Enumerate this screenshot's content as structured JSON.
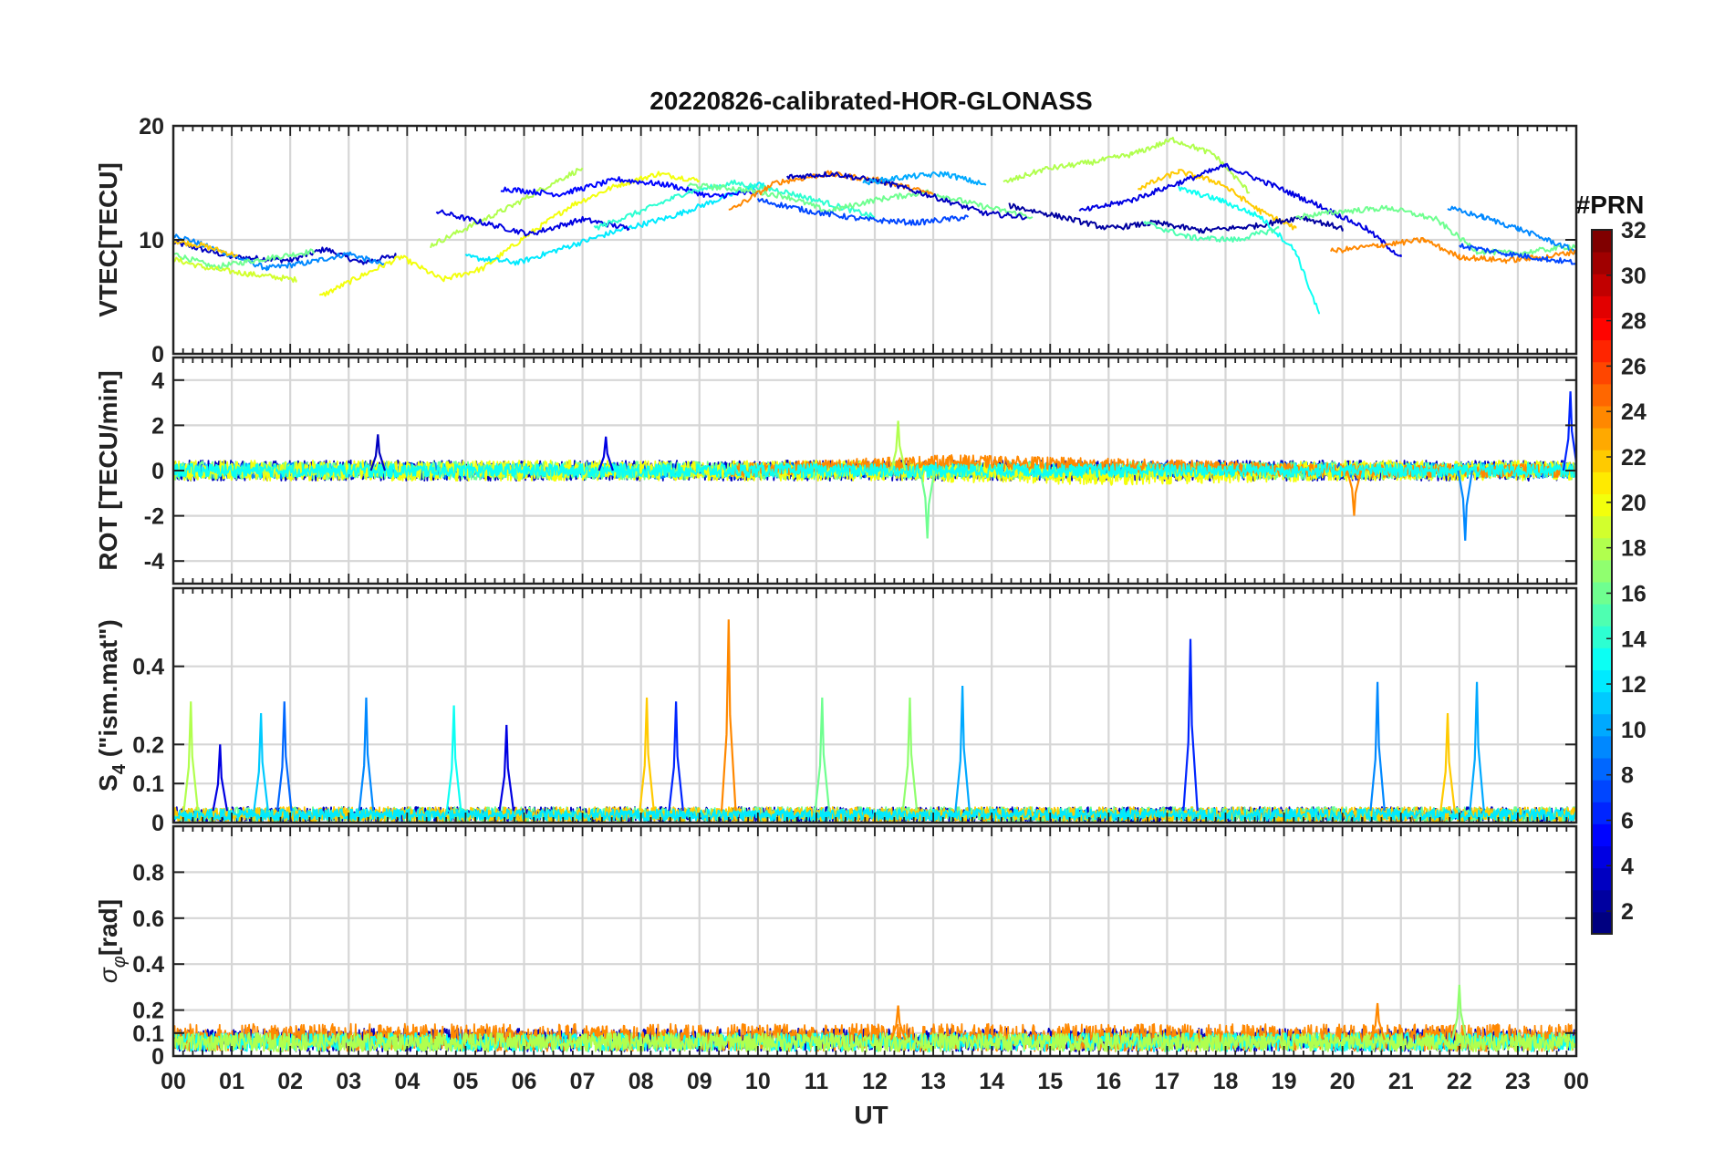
{
  "chart_data": {
    "type": "line",
    "title": "20220826-calibrated-HOR-GLONASS",
    "xlabel": "UT",
    "x_ticks": [
      "00",
      "01",
      "02",
      "03",
      "04",
      "05",
      "06",
      "07",
      "08",
      "09",
      "10",
      "11",
      "12",
      "13",
      "14",
      "15",
      "16",
      "17",
      "18",
      "19",
      "20",
      "21",
      "22",
      "23",
      "00"
    ],
    "xlim_hours": [
      0,
      24
    ],
    "grid": true,
    "colorbar": {
      "title": "#PRN",
      "range": [
        1,
        32
      ],
      "ticks": [
        2,
        4,
        6,
        8,
        10,
        12,
        14,
        16,
        18,
        20,
        22,
        24,
        26,
        28,
        30,
        32
      ],
      "colormap": "jet"
    },
    "panels": [
      {
        "id": "vtec",
        "ylabel": "VTEC[TECU]",
        "ylim": [
          0,
          20
        ],
        "yticks": [
          0,
          10,
          20
        ],
        "series": [
          {
            "prn": 3,
            "x": [
              0,
              1,
              2,
              2.6,
              3.2,
              3.8
            ],
            "y": [
              9.8,
              8.5,
              8.2,
              9.2,
              8.0,
              8.6
            ]
          },
          {
            "prn": 9,
            "x": [
              0,
              0.8,
              1.6,
              2.3,
              3.0,
              3.6
            ],
            "y": [
              10.5,
              9.0,
              7.5,
              8.0,
              8.8,
              7.8
            ]
          },
          {
            "prn": 16,
            "x": [
              0,
              0.7,
              1.5,
              2.4
            ],
            "y": [
              8.8,
              7.6,
              8.3,
              9.0
            ]
          },
          {
            "prn": 19,
            "x": [
              0,
              0.6,
              1.3,
              2.1
            ],
            "y": [
              8.3,
              7.5,
              7.0,
              6.5
            ]
          },
          {
            "prn": 22,
            "x": [
              0,
              0.5,
              1.1
            ],
            "y": [
              9.9,
              9.5,
              8.6
            ]
          },
          {
            "prn": 20,
            "x": [
              2.5,
              3.2,
              3.9,
              4.6,
              5.3,
              6.0,
              6.8,
              7.6,
              8.3,
              9.0
            ],
            "y": [
              5.0,
              6.8,
              8.5,
              6.5,
              7.5,
              10.2,
              13.0,
              14.8,
              15.8,
              15.2
            ]
          },
          {
            "prn": 18,
            "x": [
              4.4,
              5.0,
              5.8,
              6.5,
              7.0
            ],
            "y": [
              9.5,
              11.0,
              13.0,
              15.0,
              16.3
            ]
          },
          {
            "prn": 12,
            "x": [
              5.0,
              5.9,
              6.8,
              7.6,
              8.5,
              9.3,
              10.1
            ],
            "y": [
              8.5,
              8.0,
              9.5,
              10.8,
              12.0,
              13.5,
              15.0
            ]
          },
          {
            "prn": 4,
            "x": [
              4.5,
              5.3,
              6.1,
              7.0,
              7.8
            ],
            "y": [
              12.5,
              11.5,
              10.5,
              11.8,
              11.0
            ]
          },
          {
            "prn": 5,
            "x": [
              5.6,
              6.6,
              7.6,
              8.5,
              9.2,
              10.0
            ],
            "y": [
              14.5,
              14.0,
              15.3,
              14.8,
              13.8,
              14.2
            ]
          },
          {
            "prn": 14,
            "x": [
              7.2,
              8.0,
              8.8,
              9.6,
              10.4,
              11.2,
              12.0
            ],
            "y": [
              11.0,
              12.5,
              14.2,
              15.0,
              14.3,
              13.2,
              12.0
            ]
          },
          {
            "prn": 16,
            "x": [
              8.8,
              9.6,
              10.5,
              11.2,
              12.0,
              12.9,
              13.8,
              14.7
            ],
            "y": [
              14.8,
              14.5,
              13.8,
              12.5,
              13.5,
              14.2,
              13.0,
              12.0
            ]
          },
          {
            "prn": 24,
            "x": [
              9.5,
              10.3,
              11.2,
              12.1,
              13.0
            ],
            "y": [
              12.5,
              15.0,
              15.8,
              15.2,
              14.0
            ]
          },
          {
            "prn": 3,
            "x": [
              10.5,
              11.3,
              12.2,
              13.0,
              13.9,
              14.6
            ],
            "y": [
              15.5,
              15.8,
              15.0,
              13.8,
              12.3,
              12.0
            ]
          },
          {
            "prn": 10,
            "x": [
              11.8,
              12.5,
              13.2,
              13.9
            ],
            "y": [
              15.0,
              15.5,
              15.8,
              14.8
            ]
          },
          {
            "prn": 7,
            "x": [
              10.0,
              10.9,
              11.8,
              12.7,
              13.6
            ],
            "y": [
              13.5,
              12.5,
              11.8,
              11.5,
              12.0
            ]
          },
          {
            "prn": 18,
            "x": [
              14.2,
              14.9,
              15.7,
              16.4,
              17.1,
              17.8,
              18.4
            ],
            "y": [
              15.0,
              16.2,
              16.8,
              17.5,
              18.8,
              17.5,
              14.2
            ]
          },
          {
            "prn": 22,
            "x": [
              16.5,
              17.2,
              17.9,
              18.6,
              19.2
            ],
            "y": [
              14.5,
              16.0,
              15.0,
              12.5,
              11.0
            ]
          },
          {
            "prn": 2,
            "x": [
              14.3,
              15.2,
              16.0,
              16.8,
              17.6,
              18.5,
              19.3,
              20.0
            ],
            "y": [
              13.0,
              12.0,
              11.0,
              11.5,
              10.8,
              11.2,
              12.0,
              11.0
            ]
          },
          {
            "prn": 4,
            "x": [
              15.5,
              16.4,
              17.2,
              18.0,
              18.8,
              19.6,
              20.4,
              21.0
            ],
            "y": [
              12.5,
              13.5,
              15.0,
              16.5,
              14.8,
              13.0,
              11.0,
              8.5
            ]
          },
          {
            "prn": 13,
            "x": [
              17.2,
              17.9,
              18.6,
              19.2,
              19.6
            ],
            "y": [
              14.5,
              13.5,
              12.0,
              9.0,
              3.5
            ]
          },
          {
            "prn": 15,
            "x": [
              16.6,
              17.4,
              18.2,
              18.9
            ],
            "y": [
              11.5,
              10.2,
              10.0,
              11.0
            ]
          },
          {
            "prn": 16,
            "x": [
              19.2,
              20.0,
              20.8,
              21.6,
              22.3,
              23.0,
              24.0
            ],
            "y": [
              12.0,
              12.5,
              12.8,
              11.8,
              9.0,
              8.8,
              9.5
            ]
          },
          {
            "prn": 9,
            "x": [
              21.8,
              22.4,
              23.0,
              23.5,
              24.0
            ],
            "y": [
              12.8,
              12.0,
              11.0,
              10.0,
              9.0
            ]
          },
          {
            "prn": 24,
            "x": [
              19.8,
              20.6,
              21.4,
              22.0,
              22.8,
              23.5,
              24.0
            ],
            "y": [
              9.0,
              9.5,
              10.0,
              8.5,
              8.2,
              8.5,
              9.0
            ]
          },
          {
            "prn": 7,
            "x": [
              22.0,
              22.8,
              23.5,
              24.0
            ],
            "y": [
              9.5,
              8.8,
              8.3,
              8.0
            ]
          }
        ]
      },
      {
        "id": "rot",
        "ylabel": "ROT [TECU/min]",
        "ylim": [
          -5,
          5
        ],
        "yticks": [
          -4,
          -2,
          0,
          2,
          4
        ],
        "series": [
          {
            "prn": 3,
            "x": [
              0,
              6,
              12,
              18,
              24
            ],
            "y": [
              0.0,
              0.0,
              0.0,
              0.0,
              0.0
            ],
            "noise": 0.45
          },
          {
            "prn": 9,
            "x": [
              0,
              8,
              16,
              24
            ],
            "y": [
              0.0,
              0.0,
              0.0,
              0.0
            ],
            "noise": 0.35
          },
          {
            "prn": 16,
            "x": [
              0,
              8,
              16,
              24
            ],
            "y": [
              0.0,
              0.0,
              0.0,
              0.0
            ],
            "noise": 0.4
          },
          {
            "prn": 20,
            "x": [
              0,
              6,
              12,
              16,
              20,
              24
            ],
            "y": [
              0.0,
              0.0,
              0.0,
              -0.2,
              0.0,
              0.0
            ],
            "noise": 0.45
          },
          {
            "prn": 24,
            "x": [
              9.5,
              13.3,
              20.0,
              24.0
            ],
            "y": [
              0.0,
              0.4,
              0.0,
              0.0
            ],
            "noise": 0.3
          },
          {
            "prn": 13,
            "x": [
              0,
              12,
              24
            ],
            "y": [
              0.0,
              0.0,
              0.0
            ],
            "noise": 0.3
          }
        ],
        "spikes": [
          {
            "prn": 3,
            "x": 3.5,
            "y": 1.6
          },
          {
            "prn": 4,
            "x": 7.4,
            "y": 1.5
          },
          {
            "prn": 18,
            "x": 12.4,
            "y": 2.2
          },
          {
            "prn": 16,
            "x": 12.9,
            "y": -3.0
          },
          {
            "prn": 24,
            "x": 20.2,
            "y": -2.0
          },
          {
            "prn": 9,
            "x": 22.1,
            "y": -3.1
          },
          {
            "prn": 6,
            "x": 23.9,
            "y": 3.5
          }
        ]
      },
      {
        "id": "s4",
        "ylabel": "S4 (\"ism.mat\")",
        "ylim": [
          0,
          0.6
        ],
        "yticks": [
          0,
          0.1,
          0.2,
          0.4
        ],
        "series": [
          {
            "prn": 3,
            "x": [
              0,
              24
            ],
            "y": [
              0.02,
              0.02
            ],
            "noise": 0.02
          },
          {
            "prn": 16,
            "x": [
              0,
              24
            ],
            "y": [
              0.02,
              0.02
            ],
            "noise": 0.02
          },
          {
            "prn": 22,
            "x": [
              0,
              24
            ],
            "y": [
              0.02,
              0.02
            ],
            "noise": 0.02
          },
          {
            "prn": 12,
            "x": [
              0,
              24
            ],
            "y": [
              0.02,
              0.02
            ],
            "noise": 0.015
          }
        ],
        "spikes": [
          {
            "prn": 18,
            "x": 0.3,
            "y": 0.31
          },
          {
            "prn": 4,
            "x": 0.8,
            "y": 0.2
          },
          {
            "prn": 11,
            "x": 1.5,
            "y": 0.28
          },
          {
            "prn": 8,
            "x": 1.9,
            "y": 0.31
          },
          {
            "prn": 9,
            "x": 3.3,
            "y": 0.32
          },
          {
            "prn": 13,
            "x": 4.8,
            "y": 0.3
          },
          {
            "prn": 4,
            "x": 5.7,
            "y": 0.25
          },
          {
            "prn": 22,
            "x": 8.1,
            "y": 0.32
          },
          {
            "prn": 6,
            "x": 8.6,
            "y": 0.31
          },
          {
            "prn": 24,
            "x": 9.5,
            "y": 0.52
          },
          {
            "prn": 16,
            "x": 11.1,
            "y": 0.32
          },
          {
            "prn": 17,
            "x": 12.6,
            "y": 0.32
          },
          {
            "prn": 10,
            "x": 13.5,
            "y": 0.35
          },
          {
            "prn": 6,
            "x": 17.4,
            "y": 0.47
          },
          {
            "prn": 9,
            "x": 20.6,
            "y": 0.36
          },
          {
            "prn": 22,
            "x": 21.8,
            "y": 0.28
          },
          {
            "prn": 10,
            "x": 22.3,
            "y": 0.36
          }
        ]
      },
      {
        "id": "sigma_phi",
        "ylabel": "σφ[rad]",
        "ylim": [
          0,
          1.0
        ],
        "yticks": [
          0,
          0.1,
          0.2,
          0.4,
          0.6,
          0.8
        ],
        "series": [
          {
            "prn": 3,
            "x": [
              0,
              24
            ],
            "y": [
              0.07,
              0.07
            ],
            "noise": 0.05
          },
          {
            "prn": 24,
            "x": [
              0,
              24
            ],
            "y": [
              0.08,
              0.08
            ],
            "noise": 0.06
          },
          {
            "prn": 13,
            "x": [
              0,
              24
            ],
            "y": [
              0.06,
              0.06
            ],
            "noise": 0.04
          },
          {
            "prn": 18,
            "x": [
              0,
              24
            ],
            "y": [
              0.06,
              0.06
            ],
            "noise": 0.04
          }
        ],
        "spikes": [
          {
            "prn": 24,
            "x": 12.4,
            "y": 0.22
          },
          {
            "prn": 24,
            "x": 20.6,
            "y": 0.23
          },
          {
            "prn": 17,
            "x": 22.0,
            "y": 0.31
          }
        ]
      }
    ]
  }
}
